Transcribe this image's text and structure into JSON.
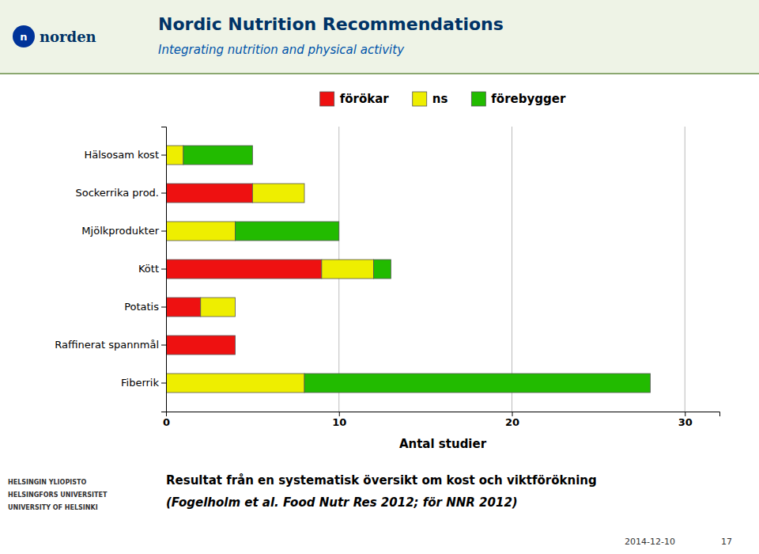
{
  "chart_data": {
    "type": "bar",
    "orientation": "horizontal",
    "stacked": true,
    "title": "Nordic Nutrition Recommendations",
    "subtitle": "Integrating nutrition and physical activity",
    "categories": [
      "Hälsosam kost",
      "Sockerrika prod.",
      "Mjölkprodukter",
      "Kött",
      "Potatis",
      "Raffinerat spannmål",
      "Fiberrik"
    ],
    "series": [
      {
        "name": "förökar",
        "color": "#EE1111",
        "values": [
          0,
          5,
          0,
          9,
          2,
          4,
          0
        ]
      },
      {
        "name": "ns",
        "color": "#EEEE00",
        "values": [
          1,
          3,
          4,
          3,
          2,
          0,
          8
        ]
      },
      {
        "name": "förebygger",
        "color": "#22BB00",
        "values": [
          4,
          0,
          6,
          1,
          0,
          0,
          20
        ]
      }
    ],
    "x_label": "Antal studier",
    "xlim": [
      0,
      32
    ],
    "xticks": [
      0,
      10,
      20,
      30
    ],
    "grid": true,
    "legend": "top",
    "annotations": [
      "norden",
      "n",
      "Resultat från en systematisk översikt om kost och viktförökning",
      "(Fogelholm et al. Food Nutr Res 2012; för NNR 2012)",
      "HELSINGIN YLIOPISTO",
      "HELSINGFORS UNIVERSITET",
      "UNIVERSITY OF HELSINKI",
      "2014-12-10",
      "17"
    ]
  }
}
